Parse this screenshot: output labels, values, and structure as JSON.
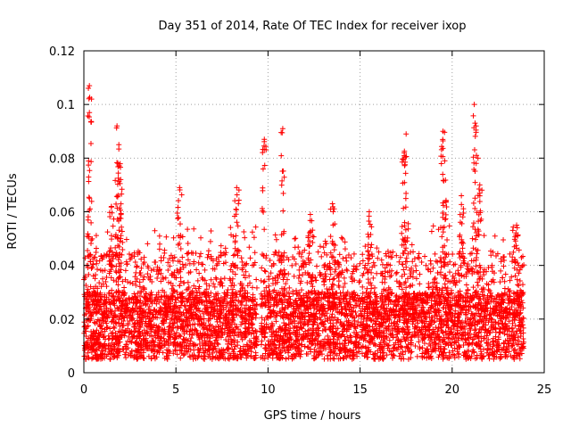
{
  "chart_data": {
    "type": "scatter",
    "title": "Day 351 of 2014, Rate Of TEC Index for receiver ixop",
    "xlabel": "GPS time / hours",
    "ylabel": "ROTI / TECUs",
    "xlim": [
      0,
      25
    ],
    "ylim": [
      0,
      0.12
    ],
    "grid": true,
    "marker": "+",
    "color": "#ff0000",
    "x_ticks": [
      0,
      5,
      10,
      15,
      20,
      25
    ],
    "x_tick_labels": [
      "0",
      "5",
      "10",
      "15",
      "20",
      "25"
    ],
    "y_ticks": [
      0,
      0.02,
      0.04,
      0.06,
      0.08,
      0.1,
      0.12
    ],
    "y_tick_labels": [
      "0",
      "0.02",
      "0.04",
      "0.06",
      "0.08",
      "0.1",
      "0.12"
    ],
    "data_gap_hours": [
      9.4,
      9.6
    ],
    "series": [
      {
        "name": "ROTI",
        "x_range": [
          0,
          23.9
        ],
        "typical_range": [
          0.005,
          0.03
        ],
        "peaks": [
          {
            "x": 0.3,
            "y": 0.107
          },
          {
            "x": 0.3,
            "y": 0.097
          },
          {
            "x": 1.5,
            "y": 0.062
          },
          {
            "x": 1.8,
            "y": 0.092
          },
          {
            "x": 1.9,
            "y": 0.085
          },
          {
            "x": 2.0,
            "y": 0.072
          },
          {
            "x": 5.2,
            "y": 0.069
          },
          {
            "x": 8.3,
            "y": 0.069
          },
          {
            "x": 9.8,
            "y": 0.087
          },
          {
            "x": 10.8,
            "y": 0.091
          },
          {
            "x": 12.3,
            "y": 0.059
          },
          {
            "x": 13.5,
            "y": 0.063
          },
          {
            "x": 15.5,
            "y": 0.06
          },
          {
            "x": 17.5,
            "y": 0.089
          },
          {
            "x": 17.4,
            "y": 0.081
          },
          {
            "x": 19.5,
            "y": 0.09
          },
          {
            "x": 19.6,
            "y": 0.079
          },
          {
            "x": 20.5,
            "y": 0.066
          },
          {
            "x": 21.2,
            "y": 0.1
          },
          {
            "x": 21.3,
            "y": 0.092
          },
          {
            "x": 21.5,
            "y": 0.07
          },
          {
            "x": 23.5,
            "y": 0.055
          }
        ]
      }
    ]
  }
}
